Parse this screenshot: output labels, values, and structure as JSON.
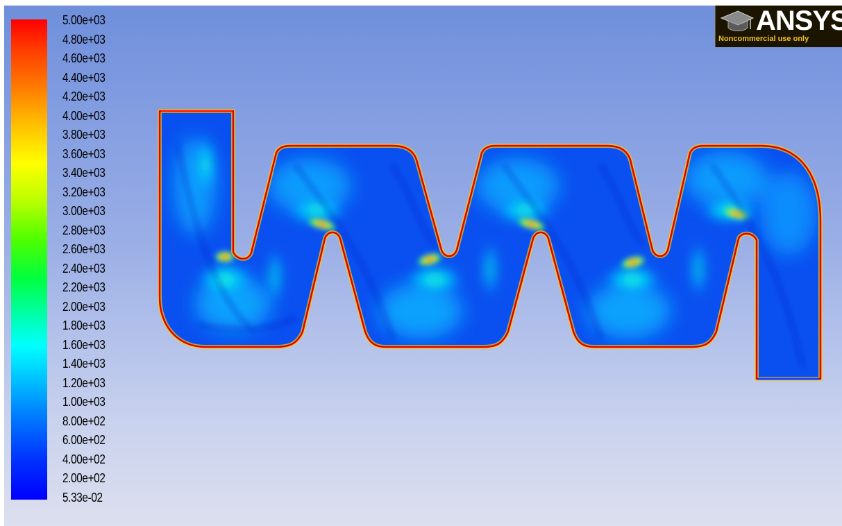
{
  "legend": {
    "ticks": [
      "5.00e+03",
      "4.80e+03",
      "4.60e+03",
      "4.40e+03",
      "4.20e+03",
      "4.00e+03",
      "3.80e+03",
      "3.60e+03",
      "3.40e+03",
      "3.20e+03",
      "3.00e+03",
      "2.80e+03",
      "2.60e+03",
      "2.40e+03",
      "2.20e+03",
      "2.00e+03",
      "1.80e+03",
      "1.60e+03",
      "1.40e+03",
      "1.20e+03",
      "1.00e+03",
      "8.00e+02",
      "6.00e+02",
      "4.00e+02",
      "2.00e+02",
      "5.33e-02"
    ],
    "max_color": "#ff0000",
    "min_color": "#0000ff"
  },
  "logo": {
    "brand": "ANSYS",
    "note": "Noncommercial use only",
    "icon": "graduation-cap-icon"
  },
  "colors": {
    "background_top": "#6f8fdc",
    "background_bottom": "#dcdfee",
    "field_base": "#0a50f0"
  }
}
